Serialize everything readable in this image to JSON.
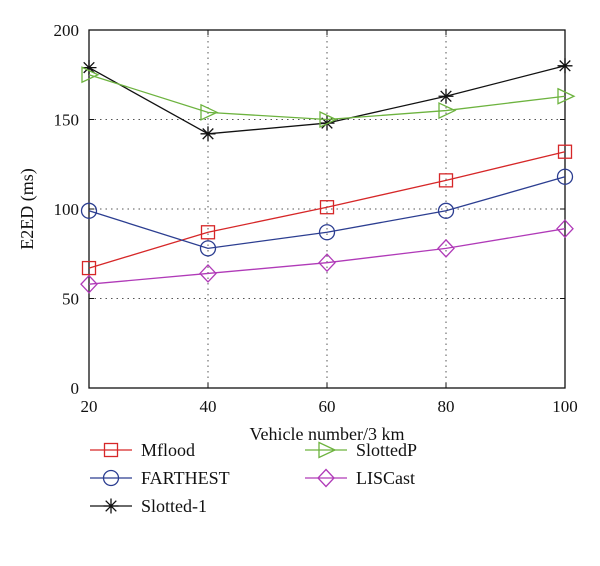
{
  "chart_data": {
    "type": "line",
    "xlabel": "Vehicle number/3 km",
    "ylabel": "E2ED (ms)",
    "x": [
      20,
      40,
      60,
      80,
      100
    ],
    "xlim": [
      20,
      100
    ],
    "ylim": [
      0,
      200
    ],
    "xticks": [
      20,
      40,
      60,
      80,
      100
    ],
    "yticks": [
      0,
      50,
      100,
      150,
      200
    ],
    "grid": true,
    "legend_position": "below",
    "series": [
      {
        "name": "Mflood",
        "color": "#d62728",
        "marker": "square",
        "values": [
          67,
          87,
          101,
          116,
          132
        ]
      },
      {
        "name": "FARTHEST",
        "color": "#2c3e91",
        "marker": "circle",
        "values": [
          99,
          78,
          87,
          99,
          118
        ]
      },
      {
        "name": "Slotted-1",
        "color": "#111111",
        "marker": "asterisk",
        "values": [
          179,
          142,
          148,
          163,
          180
        ]
      },
      {
        "name": "SlottedP",
        "color": "#6db33f",
        "marker": "triangle",
        "values": [
          175,
          154,
          150,
          155,
          163
        ]
      },
      {
        "name": "LISCast",
        "color": "#b03ab8",
        "marker": "diamond",
        "values": [
          58,
          64,
          70,
          78,
          89
        ]
      }
    ]
  }
}
